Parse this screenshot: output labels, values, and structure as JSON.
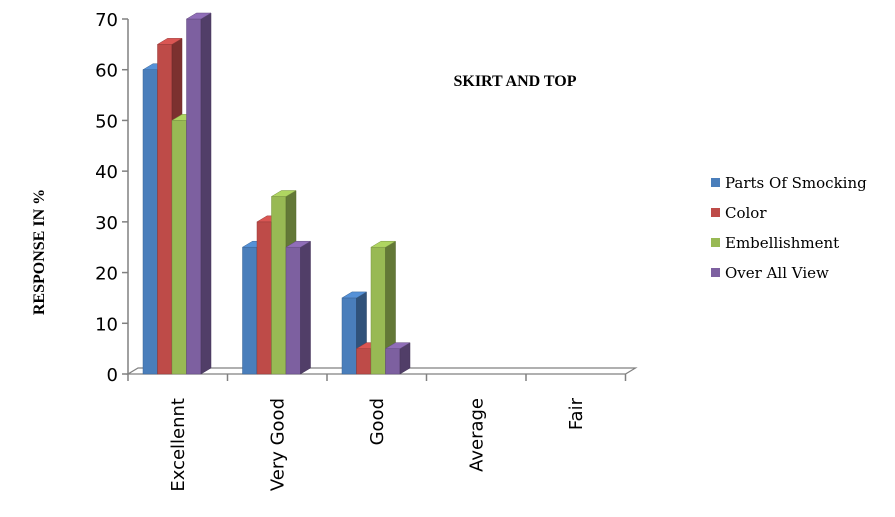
{
  "chart_data": {
    "type": "bar",
    "title": "SKIRT AND TOP",
    "xlabel": "",
    "ylabel": "RESPONSE  IN  %",
    "ylim": [
      0,
      70
    ],
    "yticks": [
      "0",
      "10",
      "20",
      "30",
      "40",
      "50",
      "60",
      "70"
    ],
    "categories": [
      "Excellennt",
      "Very Good",
      "Good",
      "Average",
      "Fair"
    ],
    "series": [
      {
        "name": "Parts Of Smocking",
        "color": "#4a7ebb",
        "values": [
          60,
          25,
          15,
          0,
          0
        ]
      },
      {
        "name": "Color",
        "color": "#be4b48",
        "values": [
          65,
          30,
          5,
          0,
          0
        ]
      },
      {
        "name": "Embellishment",
        "color": "#98b954",
        "values": [
          50,
          35,
          25,
          0,
          0
        ]
      },
      {
        "name": "Over All View",
        "color": "#7d60a0",
        "values": [
          70,
          25,
          5,
          0,
          0
        ]
      }
    ],
    "legend_position": "right",
    "grid": false,
    "style": "3d-clustered-column"
  }
}
